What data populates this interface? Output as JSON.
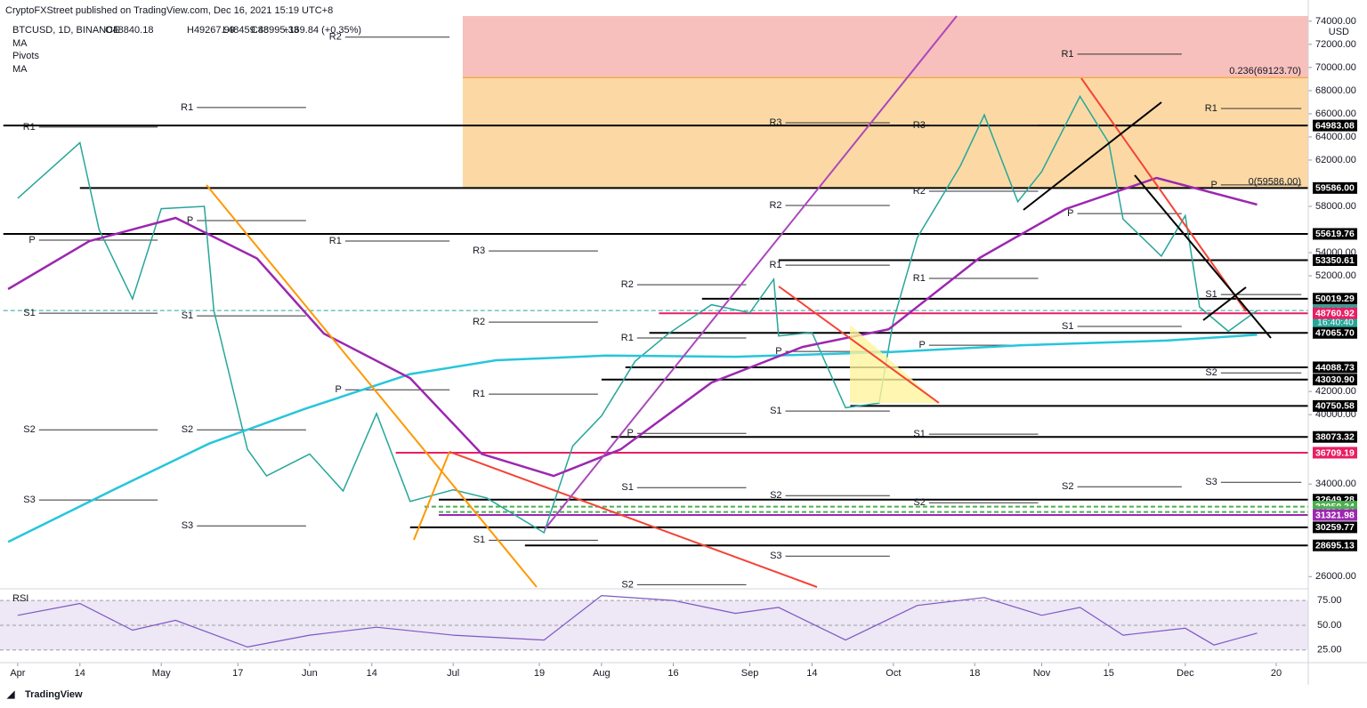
{
  "chart_data": {
    "type": "line",
    "publisher": "CryptoFXStreet published on TradingView.com, Dec 16, 2021 15:19 UTC+8",
    "title": "BTCUSD, 1D, BINANCE",
    "ohlc": [
      "O48840.18",
      "H49267.99",
      "L48459.88",
      "C48995.33",
      "+169.84 (+0.35%)"
    ],
    "indicators": [
      "MA",
      "Pivots",
      "MA"
    ],
    "y_label": "USD",
    "countdown": "16:40:40",
    "footer": "TradingView",
    "xlim": [
      -3.7,
      269.7
    ],
    "xticks": [
      {
        "value": 0,
        "label": "Apr"
      },
      {
        "value": 13,
        "label": "14"
      },
      {
        "value": 30,
        "label": "May"
      },
      {
        "value": 46,
        "label": "17"
      },
      {
        "value": 61,
        "label": "Jun"
      },
      {
        "value": 74,
        "label": "14"
      },
      {
        "value": 91,
        "label": "Jul"
      },
      {
        "value": 109,
        "label": "19"
      },
      {
        "value": 122,
        "label": "Aug"
      },
      {
        "value": 137,
        "label": "16"
      },
      {
        "value": 153,
        "label": "Sep"
      },
      {
        "value": 166,
        "label": "14"
      },
      {
        "value": 183,
        "label": "Oct"
      },
      {
        "value": 200,
        "label": "18"
      },
      {
        "value": 214,
        "label": "Nov"
      },
      {
        "value": 228,
        "label": "15"
      },
      {
        "value": 244,
        "label": "Dec"
      },
      {
        "value": 263,
        "label": "20"
      }
    ],
    "ylim": [
      25100,
      74450
    ],
    "yticks": [
      {
        "value": 74000,
        "label": "74000.00"
      },
      {
        "value": 72000,
        "label": "72000.00"
      },
      {
        "value": 70000,
        "label": "70000.00"
      },
      {
        "value": 68000,
        "label": "68000.00"
      },
      {
        "value": 66000,
        "label": "66000.00"
      },
      {
        "value": 64000,
        "label": "64000.00"
      },
      {
        "value": 62000,
        "label": "62000.00"
      },
      {
        "value": 58000,
        "label": "58000.00"
      },
      {
        "value": 54000,
        "label": "54000.00"
      },
      {
        "value": 52000,
        "label": "52000.00"
      },
      {
        "value": 42000,
        "label": "42000.00"
      },
      {
        "value": 40000,
        "label": "40000.00"
      },
      {
        "value": 34000,
        "label": "34000.00"
      },
      {
        "value": 26000,
        "label": "26000.00"
      }
    ],
    "zones": [
      {
        "from": 69123.7,
        "to": 74450,
        "color": "#f8c0bc"
      },
      {
        "from": 59586,
        "to": 69123.7,
        "color": "#fcd9a4"
      }
    ],
    "fib_labels": [
      {
        "label": "0.236(69123.70)",
        "value": 69123.7,
        "color": "#f59a23"
      },
      {
        "label": "0(59586.00)",
        "value": 59586,
        "color": "#4caf50"
      }
    ],
    "levels": [
      {
        "value": 64983.08,
        "color": "#000000",
        "start": -3
      },
      {
        "value": 59586,
        "label": "59586.00",
        "color": "#000000",
        "start": 13
      },
      {
        "value": 55619.76,
        "color": "#000000",
        "start": -3
      },
      {
        "value": 53350.61,
        "color": "#000000",
        "start": 159
      },
      {
        "value": 50019.29,
        "color": "#000000",
        "start": 143
      },
      {
        "value": 48995.33,
        "color": "#26a69a",
        "start": -3
      },
      {
        "value": 48760.92,
        "color": "#e91e63",
        "start": 134
      },
      {
        "value": 47065.7,
        "label": "47065.70",
        "color": "#000000",
        "start": 132
      },
      {
        "value": 44088.73,
        "color": "#000000",
        "start": 127
      },
      {
        "value": 43030.9,
        "label": "43030.90",
        "color": "#000000",
        "start": 122
      },
      {
        "value": 40750.58,
        "color": "#000000",
        "start": 174
      },
      {
        "value": 38073.32,
        "color": "#000000",
        "start": 124
      },
      {
        "value": 36709.19,
        "color": "#e91e63",
        "start": 79
      },
      {
        "value": 32649.28,
        "color": "#000000",
        "start": 88
      },
      {
        "value": 32050.34,
        "color": "#4caf50",
        "start": 85
      },
      {
        "value": 31584.74,
        "color": "#4caf50",
        "start": 88
      },
      {
        "value": 31321.98,
        "color": "#9c27b0",
        "start": 88
      },
      {
        "value": 30259.77,
        "color": "#000000",
        "start": 82
      },
      {
        "value": 28695.13,
        "color": "#000000",
        "start": 106
      }
    ],
    "pivots": [
      {
        "from": -3,
        "to": 30,
        "items": [
          {
            "label": "R1",
            "value": 64850
          },
          {
            "label": "P",
            "value": 55080
          },
          {
            "label": "S1",
            "value": 48770
          },
          {
            "label": "S2",
            "value": 38690
          },
          {
            "label": "S3",
            "value": 32620
          }
        ]
      },
      {
        "from": 30,
        "to": 61,
        "items": [
          {
            "label": "R1",
            "value": 66540
          },
          {
            "label": "P",
            "value": 56770
          },
          {
            "label": "S1",
            "value": 48540
          },
          {
            "label": "S2",
            "value": 38690
          },
          {
            "label": "S3",
            "value": 30380
          }
        ]
      },
      {
        "from": 61,
        "to": 91,
        "items": [
          {
            "label": "R2",
            "value": 72620
          },
          {
            "label": "R1",
            "value": 55000
          },
          {
            "label": "P",
            "value": 42150
          }
        ]
      },
      {
        "from": 91,
        "to": 122,
        "items": [
          {
            "label": "R3",
            "value": 54150
          },
          {
            "label": "R2",
            "value": 48000
          },
          {
            "label": "R1",
            "value": 41770
          },
          {
            "label": "S1",
            "value": 29150
          }
        ]
      },
      {
        "from": 122,
        "to": 153,
        "items": [
          {
            "label": "R2",
            "value": 51230
          },
          {
            "label": "R1",
            "value": 46620
          },
          {
            "label": "P",
            "value": 38380
          },
          {
            "label": "S1",
            "value": 33690
          },
          {
            "label": "S2",
            "value": 25300
          }
        ]
      },
      {
        "from": 153,
        "to": 183,
        "items": [
          {
            "label": "R3",
            "value": 65230
          },
          {
            "label": "R2",
            "value": 58080
          },
          {
            "label": "R1",
            "value": 52920
          },
          {
            "label": "P",
            "value": 45460
          },
          {
            "label": "S1",
            "value": 40310
          },
          {
            "label": "S2",
            "value": 33000
          },
          {
            "label": "S3",
            "value": 27770
          }
        ]
      },
      {
        "from": 183,
        "to": 214,
        "items": [
          {
            "label": "R3",
            "value": 65000
          },
          {
            "label": "R2",
            "value": 59310
          },
          {
            "label": "R1",
            "value": 51770
          },
          {
            "label": "P",
            "value": 46000
          },
          {
            "label": "S1",
            "value": 38310
          },
          {
            "label": "S2",
            "value": 32380
          }
        ]
      },
      {
        "from": 214,
        "to": 244,
        "items": [
          {
            "label": "R1",
            "value": 71150
          },
          {
            "label": "P",
            "value": 57380
          },
          {
            "label": "S1",
            "value": 47620
          },
          {
            "label": "S2",
            "value": 33770
          }
        ]
      },
      {
        "from": 244,
        "to": 269,
        "items": [
          {
            "label": "R1",
            "value": 66460
          },
          {
            "label": "P",
            "value": 59850
          },
          {
            "label": "S1",
            "value": 50380
          },
          {
            "label": "S2",
            "value": 43610
          },
          {
            "label": "S3",
            "value": 34150
          }
        ]
      }
    ],
    "series": [
      {
        "name": "Close",
        "color": "#26a69a",
        "x": [
          0,
          13,
          17,
          24,
          30,
          39,
          41,
          48,
          52,
          61,
          68,
          75,
          82,
          91,
          98,
          110,
          116,
          122,
          129,
          136,
          145,
          153,
          158,
          159,
          166,
          173,
          180,
          183,
          188,
          197,
          202,
          209,
          214,
          222,
          228,
          231,
          239,
          244,
          247,
          253,
          259
        ],
        "values": [
          58700,
          63500,
          56000,
          50000,
          57800,
          58000,
          49000,
          37000,
          34700,
          36600,
          33400,
          40100,
          32500,
          33500,
          32800,
          29800,
          37300,
          39900,
          44600,
          47000,
          49500,
          48800,
          51700,
          46800,
          47100,
          40600,
          41000,
          48100,
          55300,
          61500,
          65900,
          58400,
          61000,
          67500,
          63500,
          56900,
          53700,
          57200,
          49300,
          47200,
          48995.33
        ]
      },
      {
        "name": "MA",
        "color": "#26c6da",
        "x": [
          -2,
          20,
          40,
          60,
          82,
          100,
          123,
          150,
          182,
          210,
          240,
          259
        ],
        "values": [
          29000,
          33500,
          37500,
          40500,
          43500,
          44700,
          45100,
          45000,
          45400,
          46000,
          46400,
          46900
        ]
      },
      {
        "name": "MA",
        "color": "#9c27b0",
        "x": [
          -2,
          15,
          33,
          50,
          64,
          82,
          97,
          112,
          126,
          145,
          164,
          182,
          201,
          219,
          238,
          259
        ],
        "values": [
          50850,
          55000,
          57000,
          53500,
          47000,
          43150,
          36600,
          34700,
          37000,
          42770,
          45850,
          47380,
          53540,
          57770,
          60460,
          58150
        ]
      }
    ],
    "rsi": {
      "name": "RSI",
      "ylim": [
        14,
        85
      ],
      "yticks": [
        {
          "value": 75,
          "label": "75.00"
        },
        {
          "value": 50,
          "label": "50.00"
        },
        {
          "value": 25,
          "label": "25.00"
        }
      ],
      "color": "#7e57c2",
      "x": [
        0,
        13,
        24,
        33,
        48,
        61,
        75,
        91,
        110,
        122,
        137,
        150,
        159,
        173,
        188,
        202,
        214,
        222,
        231,
        244,
        250,
        259
      ],
      "values": [
        60,
        72,
        45,
        55,
        28,
        40,
        48,
        40,
        35,
        80,
        75,
        62,
        68,
        35,
        70,
        78,
        60,
        68,
        40,
        47,
        30,
        42
      ]
    }
  }
}
